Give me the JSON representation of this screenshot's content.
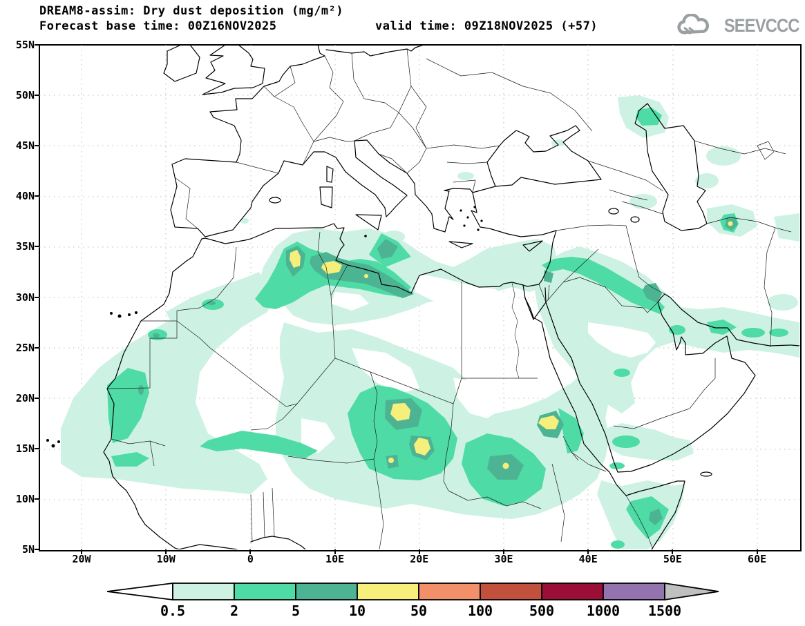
{
  "header": {
    "title_line1": "DREAM8-assim: Dry dust deposition (mg/m²)",
    "title_line2_left": "Forecast base time: 00Z16NOV2025",
    "title_line2_right": "valid time: 09Z18NOV2025 (+57)"
  },
  "logo": {
    "text": "SEEVCCC",
    "icon": "cloud-icon",
    "color": "#9aa0a1"
  },
  "map": {
    "y_axis": {
      "labels": [
        "55N",
        "50N",
        "45N",
        "40N",
        "35N",
        "30N",
        "25N",
        "20N",
        "15N",
        "10N",
        "5N"
      ]
    },
    "x_axis": {
      "labels": [
        "20W",
        "10W",
        "0",
        "10E",
        "20E",
        "30E",
        "40E",
        "50E",
        "60E"
      ]
    }
  },
  "colorbar": {
    "values": [
      "0.5",
      "2",
      "5",
      "10",
      "50",
      "100",
      "500",
      "1000",
      "1500"
    ],
    "segment_colors": [
      "#cdf2e4",
      "#4edba6",
      "#4db493",
      "#f7ef7c",
      "#f29069",
      "#c1513d",
      "#9b0e38",
      "#9474ae"
    ],
    "under_color": "#ffffff",
    "over_color": "#c0c0c0"
  },
  "chart_data": {
    "type": "heatmap",
    "title": "DREAM8-assim: Dry dust deposition (mg/m²)",
    "units": "mg/m²",
    "levels": [
      0.5,
      2,
      5,
      10,
      50,
      100,
      500,
      1000,
      1500
    ],
    "lon_range": [
      -25,
      65
    ],
    "lat_range": [
      5,
      55
    ],
    "grid": "dotted, 10° lon × 5° lat",
    "legend_position": "bottom",
    "maxima_hotspots_lon_lat": [
      [
        5.5,
        33.5
      ],
      [
        9.5,
        33.0
      ],
      [
        17.5,
        18.5
      ],
      [
        20.5,
        15.2
      ],
      [
        16.7,
        13.8
      ],
      [
        30.0,
        13.3
      ],
      [
        35.5,
        17.5
      ],
      [
        57.0,
        37.3
      ]
    ],
    "main_dust_regions": [
      "West Africa / Atlantic coast (Mauritania-Senegal) 0.5-5",
      "Northern Algeria-Tunisia-Libya coast 2-50",
      "Chad-Sudan Sahel belt 2-50",
      "Eritrea-Red Sea coast 2-50",
      "Levant-Iraq-Persian Gulf band 2-10",
      "Somalia / Gulf of Aden 0.5-10",
      "NW Caspian 2-5",
      "NE Iran / Turkmenistan spot 10-50"
    ]
  }
}
